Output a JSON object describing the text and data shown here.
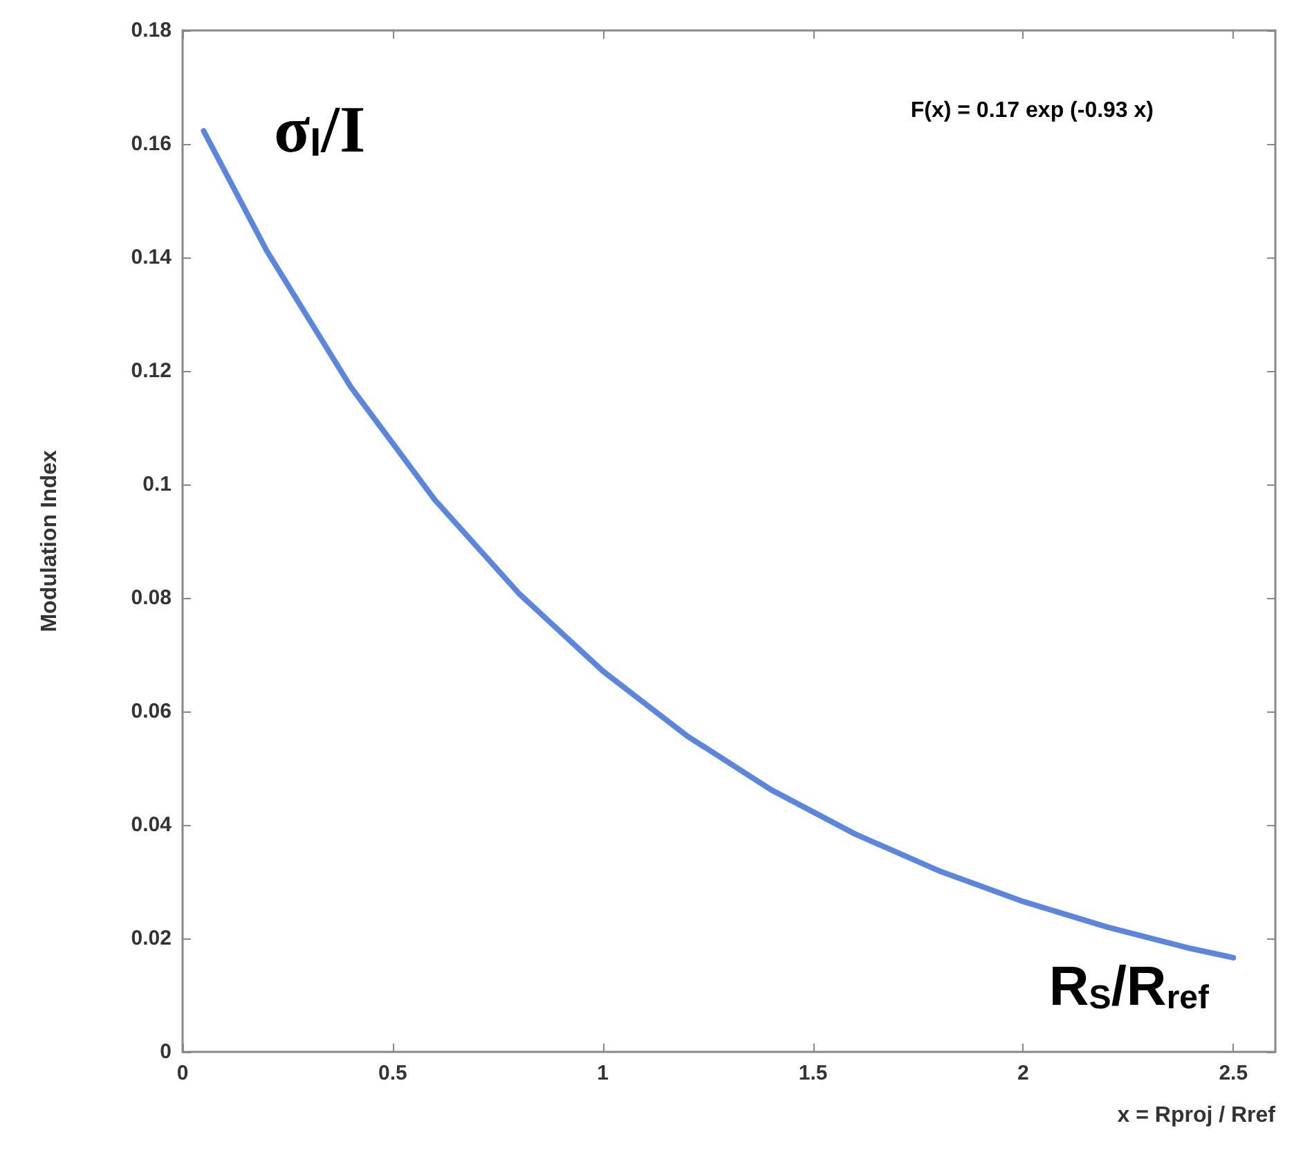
{
  "chart_data": {
    "type": "line",
    "ylabel": "Modulation Index",
    "xlabel": "x = Rproj / Rref",
    "annotations": [
      "σ$_{I}$/I",
      "F(x) = 0.17 exp (-0.93 x)",
      "R$_{S}$/R$_{ref}$"
    ],
    "x": [
      0.05,
      0.2,
      0.4,
      0.6,
      0.8,
      1.0,
      1.2,
      1.4,
      1.6,
      1.8,
      2.0,
      2.2,
      2.4,
      2.5
    ],
    "series": [
      {
        "color": "#5b86e0",
        "values": [
          0.1623,
          0.1412,
          0.1172,
          0.0973,
          0.0808,
          0.0671,
          0.0557,
          0.0462,
          0.0384,
          0.0319,
          0.0265,
          0.022,
          0.0182,
          0.0166
        ]
      }
    ],
    "xlim": [
      0,
      2.6
    ],
    "xticks": [
      0,
      0.5,
      1,
      1.5,
      2,
      2.5
    ],
    "ylim": [
      0,
      0.18
    ],
    "yticks": [
      0,
      0.02,
      0.04,
      0.06,
      0.08,
      0.1,
      0.12,
      0.14,
      0.16,
      0.18
    ],
    "grid": false,
    "marker": "none",
    "line_style": "solid"
  }
}
